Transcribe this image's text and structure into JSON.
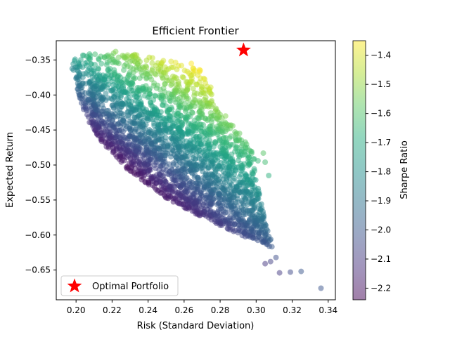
{
  "chart_data": {
    "type": "scatter",
    "title": "Efficient Frontier",
    "xlabel": "Risk (Standard Deviation)",
    "ylabel": "Expected Return",
    "xlim": [
      0.189,
      0.344
    ],
    "ylim": [
      -0.6925,
      -0.3225
    ],
    "xticks": [
      0.2,
      0.22,
      0.24,
      0.26,
      0.28,
      0.3,
      0.32,
      0.34
    ],
    "xtick_labels": [
      "0.20",
      "0.22",
      "0.24",
      "0.26",
      "0.28",
      "0.30",
      "0.32",
      "0.34"
    ],
    "yticks": [
      -0.35,
      -0.4,
      -0.45,
      -0.5,
      -0.55,
      -0.6,
      -0.65
    ],
    "ytick_labels": [
      "−0.35",
      "−0.40",
      "−0.45",
      "−0.50",
      "−0.55",
      "−0.60",
      "−0.65"
    ],
    "grid": false,
    "point_alpha": 0.5,
    "colormap": "viridis",
    "colorbar": {
      "label": "Sharpe Ratio",
      "range": [
        -2.24,
        -1.35
      ],
      "ticks": [
        -1.4,
        -1.5,
        -1.6,
        -1.7,
        -1.8,
        -1.9,
        -2.0,
        -2.1,
        -2.2
      ],
      "tick_labels": [
        "−1.4",
        "−1.5",
        "−1.6",
        "−1.7",
        "−1.8",
        "−1.9",
        "−2.0",
        "−2.1",
        "−2.2"
      ]
    },
    "optimal": {
      "x": 0.293,
      "y": -0.336,
      "color": "#ff0000",
      "marker": "star"
    },
    "legend": {
      "position": "lower-left",
      "entries": [
        "Optimal Portfolio"
      ]
    },
    "frontier_boundary": {
      "upper_edge": [
        [
          0.197,
          -0.36
        ],
        [
          0.2,
          -0.345
        ],
        [
          0.205,
          -0.338
        ],
        [
          0.215,
          -0.337
        ],
        [
          0.23,
          -0.341
        ],
        [
          0.25,
          -0.35
        ],
        [
          0.265,
          -0.36
        ],
        [
          0.27,
          -0.365
        ]
      ],
      "lower_edge": [
        [
          0.197,
          -0.36
        ],
        [
          0.205,
          -0.43
        ],
        [
          0.215,
          -0.47
        ],
        [
          0.23,
          -0.51
        ],
        [
          0.25,
          -0.547
        ],
        [
          0.27,
          -0.575
        ],
        [
          0.29,
          -0.6
        ],
        [
          0.31,
          -0.62
        ],
        [
          0.325,
          -0.645
        ],
        [
          0.336,
          -0.676
        ]
      ],
      "right_edge": [
        [
          0.27,
          -0.365
        ],
        [
          0.275,
          -0.39
        ],
        [
          0.28,
          -0.43
        ],
        [
          0.29,
          -0.45
        ],
        [
          0.3,
          -0.49
        ],
        [
          0.3,
          -0.52
        ],
        [
          0.305,
          -0.58
        ],
        [
          0.31,
          -0.62
        ]
      ]
    },
    "notable_points": [
      {
        "x": 0.336,
        "y": -0.676
      },
      {
        "x": 0.325,
        "y": -0.652
      },
      {
        "x": 0.319,
        "y": -0.653
      },
      {
        "x": 0.313,
        "y": -0.654
      },
      {
        "x": 0.307,
        "y": -0.515
      },
      {
        "x": 0.304,
        "y": -0.483
      },
      {
        "x": 0.305,
        "y": -0.496
      },
      {
        "x": 0.301,
        "y": -0.494
      },
      {
        "x": 0.296,
        "y": -0.489
      },
      {
        "x": 0.289,
        "y": -0.474
      },
      {
        "x": 0.285,
        "y": -0.474
      },
      {
        "x": 0.287,
        "y": -0.444
      },
      {
        "x": 0.284,
        "y": -0.449
      },
      {
        "x": 0.279,
        "y": -0.449
      },
      {
        "x": 0.28,
        "y": -0.428
      },
      {
        "x": 0.283,
        "y": -0.43
      },
      {
        "x": 0.269,
        "y": -0.365
      },
      {
        "x": 0.266,
        "y": -0.365
      },
      {
        "x": 0.264,
        "y": -0.355
      },
      {
        "x": 0.222,
        "y": -0.338
      },
      {
        "x": 0.305,
        "y": -0.641
      },
      {
        "x": 0.311,
        "y": -0.632
      },
      {
        "x": 0.308,
        "y": -0.638
      },
      {
        "x": 0.272,
        "y": -0.393
      },
      {
        "x": 0.275,
        "y": -0.41
      }
    ]
  }
}
